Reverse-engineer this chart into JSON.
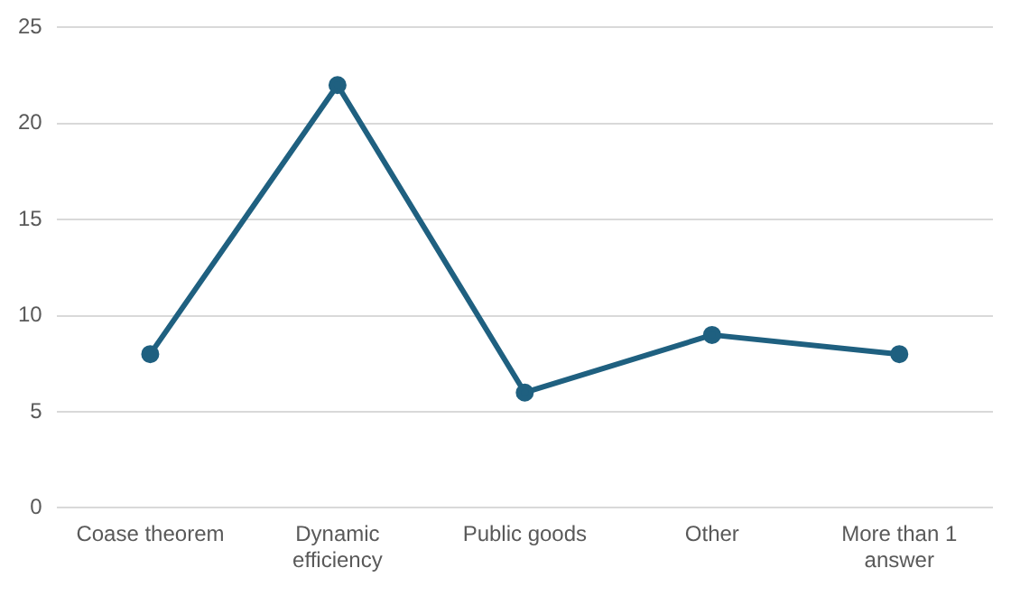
{
  "chart_data": {
    "type": "line",
    "categories": [
      "Coase theorem",
      "Dynamic efficiency",
      "Public goods",
      "Other",
      "More than 1 answer"
    ],
    "series": [
      {
        "color": "#1f6080",
        "values": [
          8,
          22,
          6,
          9,
          8
        ]
      }
    ],
    "ylim": [
      0,
      25
    ],
    "yticks": [
      0,
      5,
      10,
      15,
      20,
      25
    ],
    "grid": "y",
    "marker": "circle",
    "line_style": "solid",
    "legend": false
  }
}
